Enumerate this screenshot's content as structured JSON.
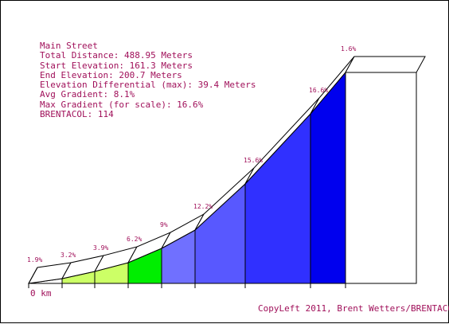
{
  "info": {
    "street": "Main Street",
    "total_distance": "Total Distance: 488.95 Meters",
    "start_elevation": "Start Elevation: 161.3 Meters",
    "end_elevation": "End Elevation: 200.7 Meters",
    "elevation_differential": "Elevation Differential (max): 39.4 Meters",
    "avg_gradient": "Avg Gradient: 8.1%",
    "max_gradient": "Max Gradient (for scale): 16.6%",
    "brentacol": "BRENTACOL: 114"
  },
  "footer": {
    "copyleft": "CopyLeft 2011, Brent Wetters/BRENTACOL"
  },
  "colors": {
    "text": "#a0105a",
    "gradient_0_2": "#ffffff",
    "gradient_3_4": "#ccff66",
    "gradient_6": "#00ee00",
    "gradient_9": "#7070ff",
    "gradient_12": "#5858ff",
    "gradient_15": "#3030ff",
    "gradient_16": "#0000ee"
  },
  "chart_data": {
    "type": "area",
    "start_label": "0 km",
    "segments": [
      {
        "gradient": 1.9,
        "label": "1.9%",
        "color": "#ffffff"
      },
      {
        "gradient": 3.2,
        "label": "3.2%",
        "color": "#ccff66"
      },
      {
        "gradient": 3.9,
        "label": "3.9%",
        "color": "#ccff66"
      },
      {
        "gradient": 6.2,
        "label": "6.2%",
        "color": "#00ee00"
      },
      {
        "gradient": 9,
        "label": "9%",
        "color": "#7070ff"
      },
      {
        "gradient": 12.2,
        "label": "12.2%",
        "color": "#5858ff"
      },
      {
        "gradient": 15.6,
        "label": "15.6%",
        "color": "#3030ff"
      },
      {
        "gradient": 16.6,
        "label": "16.6%",
        "color": "#0000ee"
      },
      {
        "gradient": 1.6,
        "label": "1.6%",
        "color": "#ffffff"
      }
    ]
  }
}
